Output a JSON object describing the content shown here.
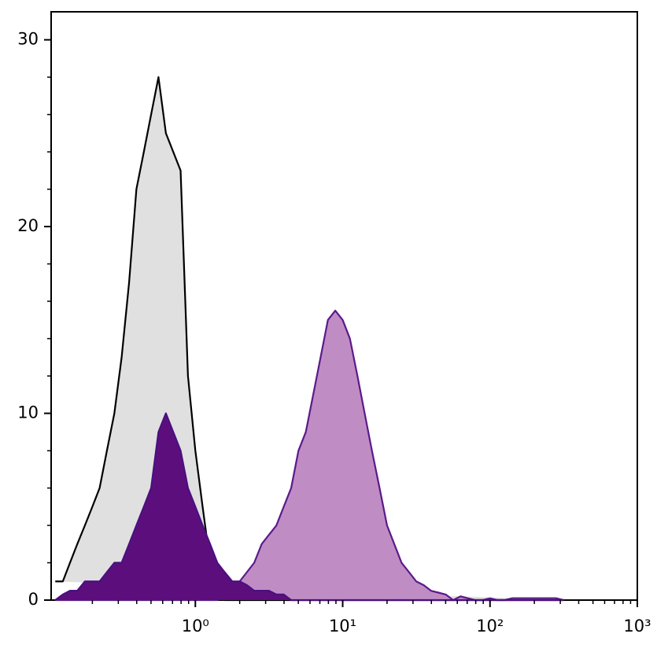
{
  "chart_data": {
    "type": "histogram",
    "xscale": "log",
    "xlim": [
      0.105,
      1000
    ],
    "ylim": [
      0,
      31.5
    ],
    "yticks": [
      0,
      10,
      20,
      30
    ],
    "yminorticks": [
      2,
      4,
      6,
      8,
      12,
      14,
      16,
      18,
      22,
      24,
      26,
      28
    ],
    "xticks": [
      {
        "value": 1,
        "label": "10⁰"
      },
      {
        "value": 10,
        "label": "10¹"
      },
      {
        "value": 100,
        "label": "10²"
      },
      {
        "value": 1000,
        "label": "10³"
      }
    ],
    "xminorticks": [
      0.2,
      0.3,
      0.4,
      0.5,
      0.6,
      0.7,
      0.8,
      0.9,
      2,
      3,
      4,
      5,
      6,
      7,
      8,
      9,
      20,
      30,
      40,
      50,
      60,
      70,
      80,
      90,
      200,
      300,
      400,
      500,
      600,
      700,
      800,
      900
    ],
    "x": [
      0.112,
      0.126,
      0.141,
      0.158,
      0.178,
      0.2,
      0.224,
      0.251,
      0.282,
      0.316,
      0.355,
      0.398,
      0.447,
      0.501,
      0.562,
      0.631,
      0.708,
      0.794,
      0.891,
      1,
      1.12,
      1.26,
      1.41,
      1.58,
      1.78,
      2,
      2.24,
      2.51,
      2.82,
      3.16,
      3.55,
      3.98,
      4.47,
      5.01,
      5.62,
      6.31,
      7.08,
      7.94,
      8.91,
      10,
      11.2,
      12.6,
      14.1,
      15.8,
      17.8,
      20,
      22.4,
      25.1,
      28.2,
      31.6,
      35.5,
      39.8,
      44.7,
      50.1,
      56.2,
      63.1,
      70.8,
      79.4,
      89.1,
      100,
      112,
      126,
      141,
      158,
      178,
      200,
      224,
      251,
      282,
      316
    ],
    "series": [
      {
        "color": "#000000",
        "fill": "#e0e0e0",
        "values": [
          1,
          1,
          2,
          3,
          4,
          5,
          6,
          8,
          10,
          13,
          17,
          22,
          24,
          26,
          28,
          25,
          24,
          23,
          12,
          8,
          5,
          2,
          0.5,
          0,
          0,
          0,
          0,
          0,
          0,
          0,
          0,
          0,
          0,
          0,
          0,
          0,
          0,
          0,
          0,
          0,
          0,
          0,
          0,
          0,
          0,
          0,
          0,
          0,
          0,
          0,
          0,
          0,
          0,
          0,
          0,
          0,
          0,
          0,
          0,
          0,
          0,
          0,
          0,
          0,
          0,
          0,
          0,
          0,
          0,
          0
        ]
      },
      {
        "color": "#5a1a8a",
        "fill": "#c08cc4",
        "values": [
          0,
          0,
          0,
          0,
          0,
          0,
          0,
          0,
          0,
          0,
          0,
          0,
          0,
          0,
          0,
          0,
          0,
          0,
          0,
          0,
          0,
          0,
          0,
          0.3,
          0.5,
          1,
          1.5,
          2,
          3,
          3.5,
          4,
          5,
          6,
          8,
          9,
          11,
          13,
          15,
          15.5,
          15,
          14,
          12,
          10,
          8,
          6,
          4,
          3,
          2,
          1.5,
          1,
          0.8,
          0.5,
          0.4,
          0.3,
          0,
          0.2,
          0.1,
          0,
          0,
          0.1,
          0,
          0,
          0.1,
          0.1,
          0.1,
          0.1,
          0.1,
          0.1,
          0.1,
          0
        ]
      },
      {
        "color": "#4a1080",
        "fill": "#5c0f7c",
        "values": [
          0,
          0.3,
          0.5,
          0.5,
          1,
          1,
          1,
          1.5,
          2,
          2,
          3,
          4,
          5,
          6,
          9,
          10,
          9,
          8,
          6,
          5,
          4,
          3,
          2,
          1.5,
          1,
          1,
          0.8,
          0.5,
          0.5,
          0.5,
          0.3,
          0.3,
          0,
          0,
          0,
          0,
          0,
          0,
          0,
          0,
          0,
          0,
          0,
          0,
          0,
          0,
          0,
          0,
          0,
          0,
          0,
          0,
          0,
          0,
          0,
          0,
          0,
          0,
          0,
          0,
          0,
          0,
          0,
          0,
          0,
          0,
          0,
          0,
          0,
          0
        ]
      }
    ]
  }
}
